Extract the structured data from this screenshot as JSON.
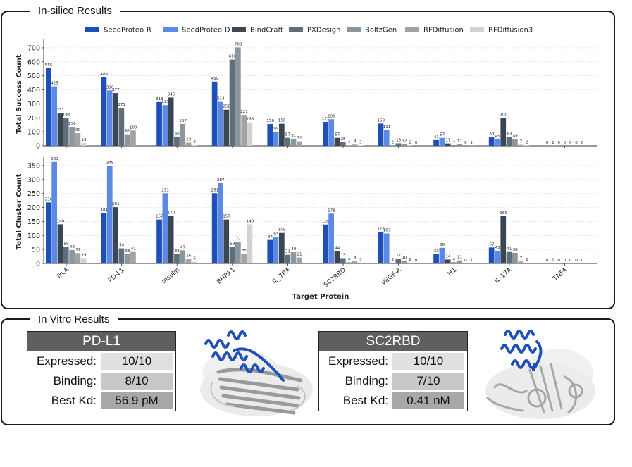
{
  "insilico": {
    "title": "In-silico Results"
  },
  "invitro": {
    "title": "In Vitro Results",
    "cards": [
      {
        "target": "PD-L1",
        "rows": [
          {
            "label": "Expressed:",
            "value": "10/10"
          },
          {
            "label": "Binding:",
            "value": "8/10"
          },
          {
            "label": "Best Kd:",
            "value": "56.9 pM"
          }
        ]
      },
      {
        "target": "SC2RBD",
        "rows": [
          {
            "label": "Expressed:",
            "value": "10/10"
          },
          {
            "label": "Binding:",
            "value": "7/10"
          },
          {
            "label": "Best Kd:",
            "value": "0.41 nM"
          }
        ]
      }
    ]
  },
  "colors": {
    "SeedProteo-R": "#1f4fb8",
    "SeedProteo-D": "#5b8ae6",
    "BindCraft": "#3a4651",
    "PXDesign": "#5f6e7b",
    "BoltzGen": "#8a979f",
    "RFDiffusion": "#a3a3a3",
    "RFDiffusion3": "#d2d2d2",
    "structure_highlight": "#1f4fb8"
  },
  "chart_data": [
    {
      "type": "bar",
      "categories": [
        "TrkA",
        "PD-L1",
        "Insulin",
        "BHRF1",
        "IL_7RA",
        "SC2RBD",
        "VEGF-A",
        "H1",
        "IL-17A",
        "TNFA"
      ],
      "ylabel": "Total Success Count",
      "xlabel": "",
      "ylim": [
        0,
        740
      ],
      "yticks": [
        0,
        100,
        200,
        300,
        400,
        500,
        600,
        700
      ],
      "legend": "top",
      "series": [
        {
          "name": "SeedProteo-R",
          "values": [
            555,
            489,
            313,
            459,
            156,
            171,
            159,
            41,
            60,
            0
          ]
        },
        {
          "name": "SeedProteo-D",
          "values": [
            425,
            396,
            291,
            314,
            99,
            190,
            111,
            57,
            45,
            1
          ]
        },
        {
          "name": "BindCraft",
          "values": [
            231,
            377,
            345,
            258,
            158,
            57,
            2,
            17,
            200,
            0
          ]
        },
        {
          "name": "PXDesign",
          "values": [
            196,
            271,
            66,
            616,
            57,
            25,
            18,
            4,
            63,
            0
          ]
        },
        {
          "name": "BoltzGen",
          "values": [
            136,
            82,
            157,
            703,
            51,
            4,
            12,
            11,
            49,
            0
          ]
        },
        {
          "name": "RFDiffusion",
          "values": [
            90,
            109,
            23,
            221,
            32,
            9,
            2,
            0,
            7,
            0
          ]
        },
        {
          "name": "RFDiffusion3",
          "values": [
            19,
            null,
            6,
            168,
            null,
            3,
            0,
            1,
            2,
            0
          ]
        }
      ]
    },
    {
      "type": "bar",
      "categories": [
        "TrkA",
        "PD-L1",
        "Insulin",
        "BHRF1",
        "IL_7RA",
        "SC2RBD",
        "VEGF-A",
        "H1",
        "IL-17A",
        "TNFA"
      ],
      "ylabel": "Total Cluster Count",
      "xlabel": "Target Protein",
      "ylim": [
        0,
        370
      ],
      "yticks": [
        0,
        50,
        100,
        150,
        200,
        250,
        300,
        350
      ],
      "series": [
        {
          "name": "SeedProteo-R",
          "values": [
            218,
            181,
            157,
            251,
            84,
            139,
            112,
            33,
            57,
            0
          ]
        },
        {
          "name": "SeedProteo-D",
          "values": [
            363,
            348,
            251,
            287,
            93,
            178,
            107,
            56,
            45,
            1
          ]
        },
        {
          "name": "BindCraft",
          "values": [
            140,
            201,
            170,
            157,
            109,
            44,
            2,
            14,
            169,
            0
          ]
        },
        {
          "name": "PXDesign",
          "values": [
            59,
            54,
            33,
            59,
            31,
            19,
            17,
            4,
            41,
            0
          ]
        },
        {
          "name": "BoltzGen",
          "values": [
            48,
            33,
            47,
            77,
            40,
            4,
            10,
            11,
            38,
            0
          ]
        },
        {
          "name": "RFDiffusion",
          "values": [
            37,
            41,
            16,
            35,
            21,
            8,
            2,
            0,
            7,
            0
          ]
        },
        {
          "name": "RFDiffusion3",
          "values": [
            19,
            null,
            6,
            140,
            null,
            3,
            0,
            1,
            2,
            0
          ]
        }
      ]
    }
  ]
}
